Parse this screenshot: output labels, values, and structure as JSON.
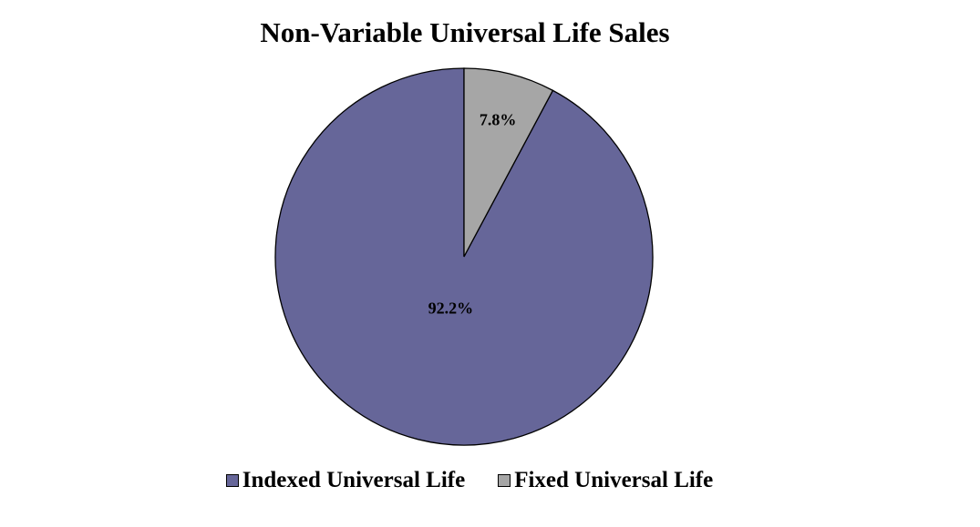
{
  "chart_data": {
    "type": "pie",
    "title": "Non-Variable Universal Life Sales",
    "slices": [
      {
        "name": "Indexed Universal Life",
        "value": 92.2,
        "label": "92.2%",
        "color": "#666699"
      },
      {
        "name": "Fixed Universal Life",
        "value": 7.8,
        "label": "7.8%",
        "color": "#a6a6a6"
      }
    ],
    "legend_position": "bottom"
  }
}
